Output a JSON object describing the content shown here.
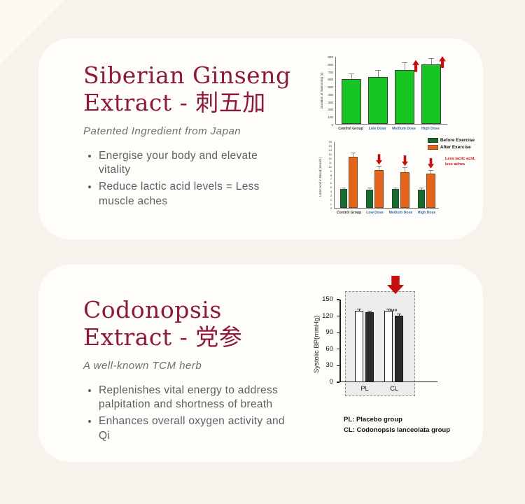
{
  "page": {
    "background": "#f7f3ec",
    "card_background": "#fffdf9"
  },
  "colors": {
    "accent_maroon": "#8e1a3a",
    "bright_green": "#17c522",
    "dark_green": "#176b2c",
    "orange": "#e2651b",
    "signal_red": "#c40f0f",
    "label_blue": "#2f6ca5"
  },
  "card1": {
    "title_line1": "Siberian Ginseng",
    "title_line2": "Extract - 刺五加",
    "subtitle": "Patented Ingredient from Japan",
    "bullets": [
      "Energise your body and elevate vitality",
      "Reduce lactic acid levels = Less muscle aches"
    ]
  },
  "card2": {
    "title_line1": "Codonopsis",
    "title_line2": "Extract - 党参",
    "subtitle": "A well-known TCM herb",
    "bullets": [
      "Replenishes vital energy to address palpitation and shortness of breath",
      "Enhances overall oxygen activity and Qi"
    ]
  },
  "chart_data": [
    {
      "type": "bar",
      "ylabel": "Duration of Swimming (s)",
      "categories": [
        "Control Group",
        "Low Dose",
        "Medium Dose",
        "High Dose"
      ],
      "category_colors": [
        "#333333",
        "#2f6ca5",
        "#2f6ca5",
        "#2f6ca5"
      ],
      "values": [
        590,
        625,
        715,
        785
      ],
      "errors": [
        70,
        80,
        95,
        75
      ],
      "up_arrows": [
        false,
        false,
        true,
        true
      ],
      "ylim": [
        0,
        900
      ],
      "ytick_step": 100,
      "bar_color": "#17c522",
      "grid": false
    },
    {
      "type": "grouped-bar",
      "ylabel": "Lactic Acid in Blood (mmol/L)",
      "categories": [
        "Control Group",
        "Low Dose",
        "Medium Dose",
        "High Dose"
      ],
      "category_colors": [
        "#333333",
        "#2f6ca5",
        "#2f6ca5",
        "#2f6ca5"
      ],
      "series": [
        {
          "name": "Before Exercise",
          "color": "#176b2c",
          "values": [
            4.5,
            4.4,
            4.5,
            4.4
          ],
          "errors": [
            0.3,
            0.3,
            0.3,
            0.3
          ]
        },
        {
          "name": "After Exercise",
          "color": "#e2651b",
          "values": [
            12.3,
            9.1,
            8.6,
            8.2
          ],
          "errors": [
            0.9,
            0.8,
            1.0,
            0.8
          ]
        }
      ],
      "down_arrows": [
        false,
        true,
        true,
        true
      ],
      "annotation": "Less lactic acid,\nless aches",
      "ylim": [
        0,
        16
      ],
      "ytick_step": 1,
      "legend_position": "top-right",
      "grid": false
    },
    {
      "type": "grouped-bar",
      "ylabel": "Systolic BP(mmHg)",
      "categories": [
        "PL",
        "CL"
      ],
      "series": [
        {
          "name": "white-bar",
          "color": "#ffffff",
          "values": [
            130,
            130
          ],
          "errors": [
            2,
            2
          ]
        },
        {
          "name": "black-bar",
          "color": "#2b2b2b",
          "values": [
            127,
            121
          ],
          "errors": [
            2,
            2
          ]
        }
      ],
      "sig_label": "###",
      "sig_category_index": 1,
      "down_arrow_category_index": 1,
      "yticks": [
        0,
        30,
        60,
        90,
        120,
        150
      ],
      "ylim": [
        0,
        150
      ],
      "footnotes": [
        "PL: Placebo group",
        "CL: Codonopsis lanceolata group"
      ],
      "grid": false
    }
  ]
}
